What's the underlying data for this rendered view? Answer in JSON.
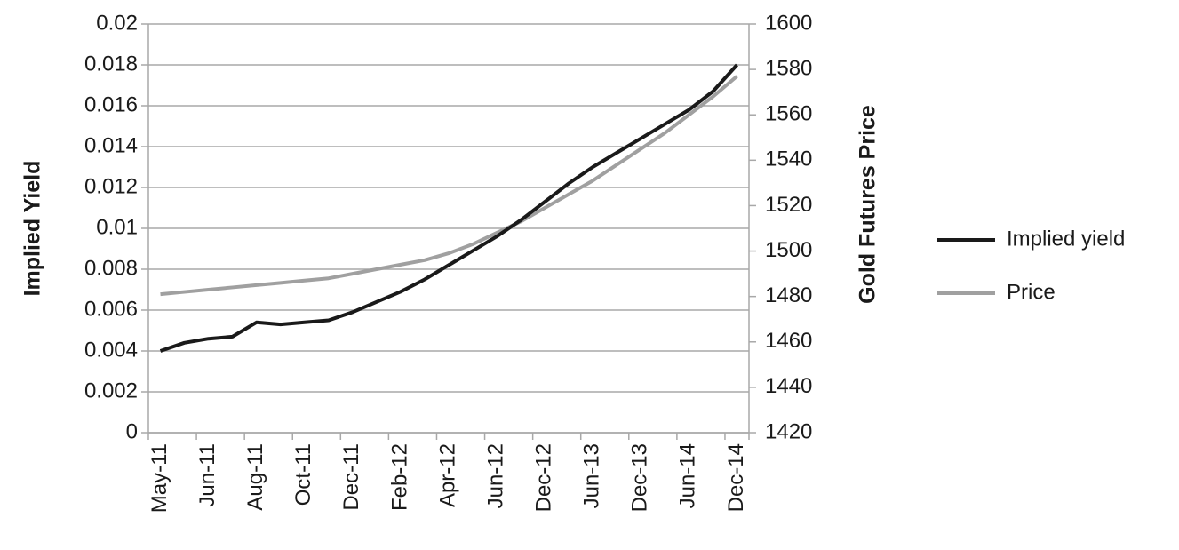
{
  "chart_data": {
    "type": "line",
    "categories": [
      "May-11",
      null,
      "Jun-11",
      null,
      "Aug-11",
      null,
      "Oct-11",
      null,
      "Dec-11",
      null,
      "Feb-12",
      null,
      "Apr-12",
      null,
      "Jun-12",
      null,
      "Dec-12",
      null,
      "Jun-13",
      null,
      "Dec-13",
      null,
      "Jun-14",
      null,
      "Dec-14"
    ],
    "series": [
      {
        "name": "Implied yield",
        "color": "#1a1a1a",
        "values": [
          0.004,
          0.0044,
          0.0046,
          0.0047,
          0.0054,
          0.0053,
          0.0054,
          0.0055,
          0.0059,
          0.0064,
          0.0069,
          0.0075,
          0.0082,
          0.0089,
          0.0096,
          0.0104,
          0.0113,
          0.0122,
          0.013,
          0.0137,
          0.0144,
          0.0151,
          0.0158,
          0.0167,
          0.018
        ]
      },
      {
        "name": "Price",
        "color": "#a0a0a0",
        "axis": "y2",
        "values": [
          1481,
          1482,
          1483,
          1484,
          1485,
          1486,
          1487,
          1488,
          1490,
          1492,
          1494,
          1496,
          1499,
          1503,
          1508,
          1513,
          1519,
          1525,
          1531,
          1538,
          1545,
          1552,
          1560,
          1568,
          1577
        ]
      }
    ],
    "ylabel": "Implied Yield",
    "y2label": "Gold Futures Price",
    "ylim": [
      0,
      0.02
    ],
    "yticks": [
      0,
      0.002,
      0.004,
      0.006,
      0.008,
      0.01,
      0.012,
      0.014,
      0.016,
      0.018,
      0.02
    ],
    "y2lim": [
      1420,
      1600
    ],
    "y2ticks": [
      1420,
      1440,
      1460,
      1480,
      1500,
      1520,
      1540,
      1560,
      1580,
      1600
    ],
    "grid": true,
    "legend": "right"
  }
}
